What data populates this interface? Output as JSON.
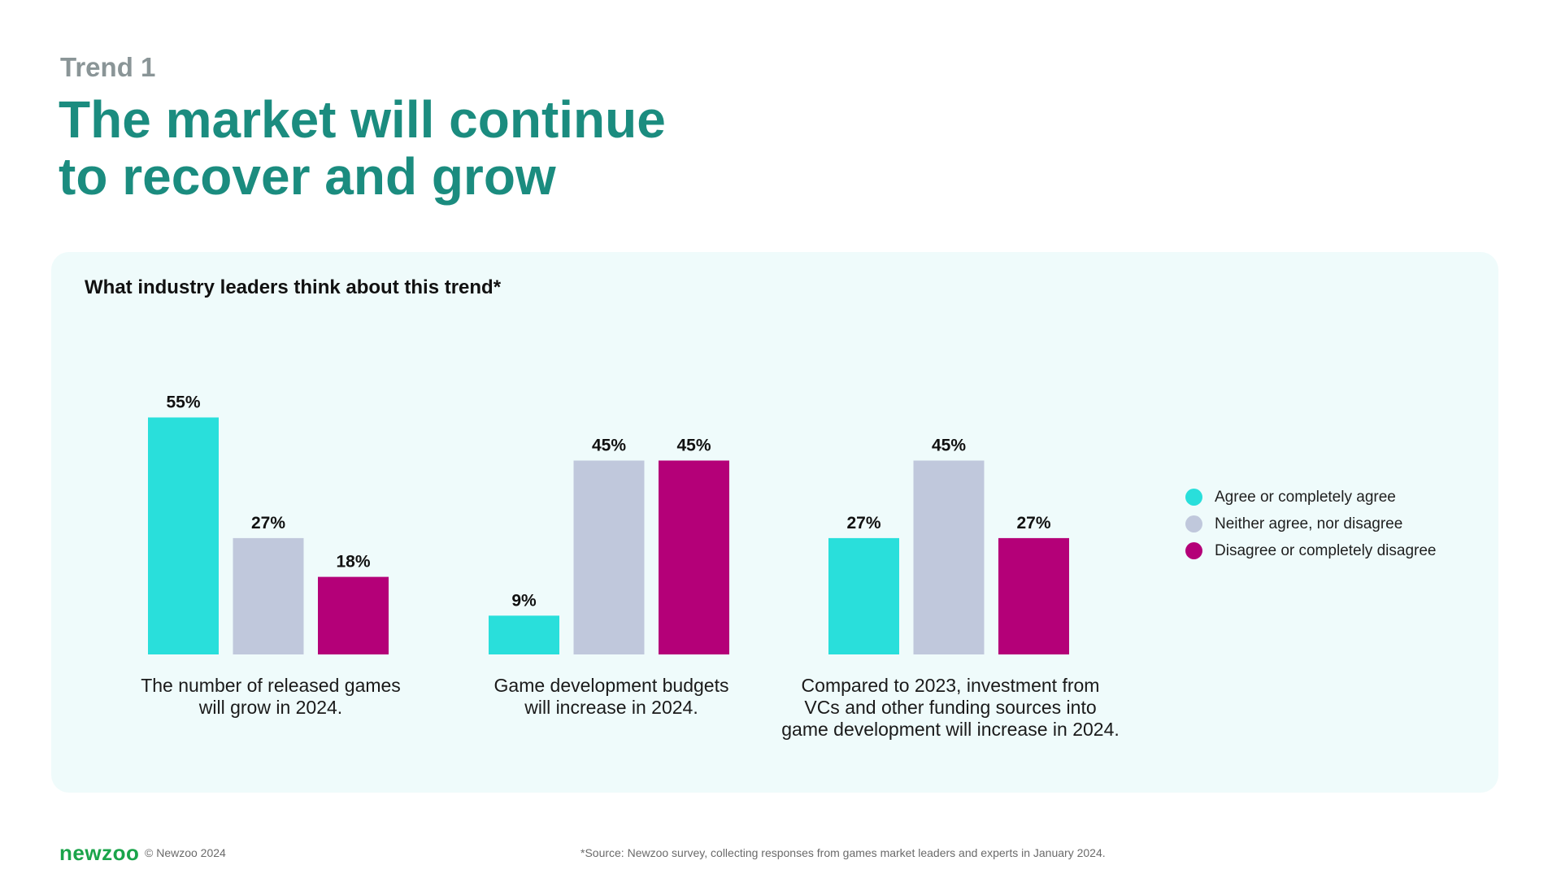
{
  "header": {
    "eyebrow": "Trend 1",
    "headline_line1": "The market will continue",
    "headline_line2": "to recover and grow"
  },
  "panel": {
    "title": "What industry leaders think about this trend*"
  },
  "colors": {
    "agree": "#29dfdb",
    "neutral": "#c0c8dc",
    "disagree": "#b40078"
  },
  "chart_data": {
    "type": "bar",
    "title": "",
    "ylim": [
      0,
      60
    ],
    "grid": false,
    "legend_position": "right",
    "categories": [
      [
        "The number of released games",
        "will grow in 2024."
      ],
      [
        "Game development budgets",
        "will increase in 2024."
      ],
      [
        "Compared to 2023, investment from",
        "VCs and other funding sources into",
        "game development will increase in 2024."
      ]
    ],
    "series": [
      {
        "name": "Agree or completely agree",
        "values": [
          55,
          9,
          27
        ],
        "labels": [
          "55%",
          "9%",
          "27%"
        ]
      },
      {
        "name": "Neither agree, nor disagree",
        "values": [
          27,
          45,
          45
        ],
        "labels": [
          "27%",
          "45%",
          "45%"
        ]
      },
      {
        "name": "Disagree or completely disagree",
        "values": [
          18,
          45,
          27
        ],
        "labels": [
          "18%",
          "45%",
          "27%"
        ]
      }
    ]
  },
  "footer": {
    "logo": "newzoo",
    "copyright": "© Newzoo 2024",
    "source": "*Source: Newzoo survey, collecting responses from games market leaders and experts in January 2024."
  }
}
